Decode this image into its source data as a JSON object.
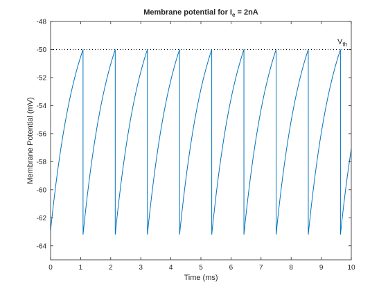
{
  "chart_data": {
    "type": "line",
    "title": {
      "main": "Membrane potential for I",
      "subscript": "e",
      "suffix": " = 2nA"
    },
    "xlabel": "Time (ms)",
    "ylabel": "Membrane Potential (mV)",
    "xlim": [
      0,
      10
    ],
    "ylim": [
      -65,
      -48
    ],
    "xticks": [
      0,
      1,
      2,
      3,
      4,
      5,
      6,
      7,
      8,
      9,
      10
    ],
    "xtick_labels": [
      "0",
      "1",
      "2",
      "3",
      "4",
      "5",
      "6",
      "7",
      "8",
      "9",
      "10"
    ],
    "yticks": [
      -48,
      -50,
      -52,
      -54,
      -56,
      -58,
      -60,
      -62,
      -64
    ],
    "ytick_labels": [
      "-48",
      "-50",
      "-52",
      "-54",
      "-56",
      "-58",
      "-60",
      "-62",
      "-64"
    ],
    "grid": false,
    "series": [
      {
        "color": "#0072bd",
        "start": {
          "t": 0.0,
          "v": -62.9
        },
        "reset_v": -63.2,
        "spike_times": [
          1.08,
          2.15,
          3.22,
          4.29,
          5.36,
          6.43,
          7.5,
          8.57,
          9.64
        ],
        "end": {
          "t": 10.0,
          "v": -57.1
        },
        "threshold_mv": -50
      }
    ],
    "annotations": [
      {
        "type": "threshold_line",
        "y": -50,
        "style": "dotted",
        "color": "#000000",
        "label": "V",
        "label_subscript": "th"
      }
    ]
  }
}
